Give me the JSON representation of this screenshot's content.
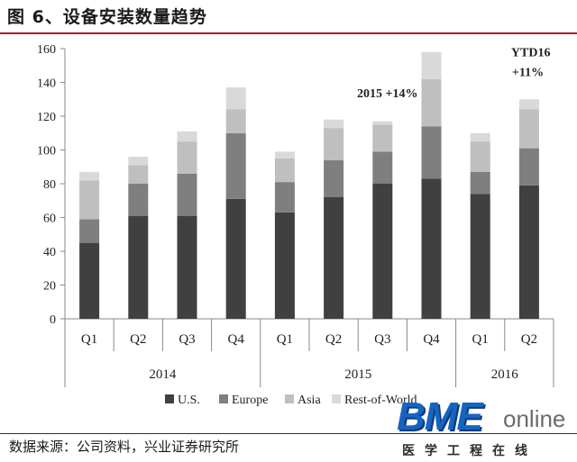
{
  "header": {
    "title": "图 6、设备安装数量趋势"
  },
  "footer": {
    "source": "数据来源：公司资料，兴业证券研究所"
  },
  "logo": {
    "main": "BME",
    "online": "online",
    "sub": "医学工程在线"
  },
  "chart_data": {
    "type": "bar",
    "stacked": true,
    "categories": [
      "Q1",
      "Q2",
      "Q3",
      "Q4",
      "Q1",
      "Q2",
      "Q3",
      "Q4",
      "Q1",
      "Q2"
    ],
    "groups": [
      {
        "label": "2014",
        "count": 4
      },
      {
        "label": "2015",
        "count": 4
      },
      {
        "label": "2016",
        "count": 2
      }
    ],
    "series": [
      {
        "name": "U.S.",
        "color": "#404040",
        "values": [
          45,
          61,
          61,
          71,
          63,
          72,
          80,
          83,
          74,
          79
        ]
      },
      {
        "name": "Europe",
        "color": "#7f7f7f",
        "values": [
          14,
          19,
          25,
          39,
          18,
          22,
          19,
          31,
          13,
          22
        ]
      },
      {
        "name": "Asia",
        "color": "#bfbfbf",
        "values": [
          23,
          11,
          19,
          14,
          14,
          19,
          16,
          28,
          18,
          23
        ]
      },
      {
        "name": "Rest-of-World",
        "color": "#d9d9d9",
        "values": [
          5,
          5,
          6,
          13,
          4,
          5,
          2,
          16,
          5,
          6
        ]
      }
    ],
    "ylim": [
      0,
      160
    ],
    "yticks": [
      0,
      20,
      40,
      60,
      80,
      100,
      120,
      140,
      160
    ],
    "annotations": [
      {
        "text": "2015 +14%",
        "category_index": 7,
        "placement": "left of bar"
      },
      {
        "text": "YTD16",
        "category_index": 9,
        "placement": "above bar"
      },
      {
        "text": "+11%",
        "category_index": 9,
        "placement": "above bar"
      }
    ],
    "legend": "bottom",
    "grid": false
  }
}
